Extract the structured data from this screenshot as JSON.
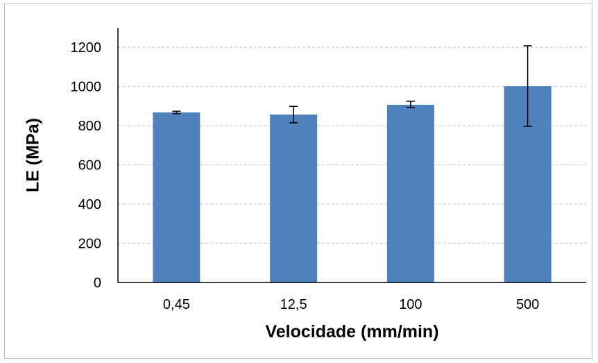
{
  "chart_data": {
    "type": "bar",
    "title": "",
    "xlabel": "Velocidade (mm/min)",
    "ylabel": "LE (MPa)",
    "categories": [
      "0,45",
      "12,5",
      "100",
      "500"
    ],
    "values": [
      868,
      857,
      907,
      1002
    ],
    "error_low": [
      862,
      815,
      893,
      797
    ],
    "error_high": [
      874,
      899,
      925,
      1208
    ],
    "ylim": [
      0,
      1300
    ],
    "yticks": [
      0,
      200,
      400,
      600,
      800,
      1000,
      1200
    ],
    "ytick_labels": [
      "0",
      "200",
      "400",
      "600",
      "800",
      "1000",
      "1200"
    ],
    "grid": true,
    "legend": "none",
    "colors": {
      "bar": "#4f81bd",
      "grid": "#c8c8c8",
      "axis": "#000000",
      "error_bar": "#000000"
    }
  }
}
